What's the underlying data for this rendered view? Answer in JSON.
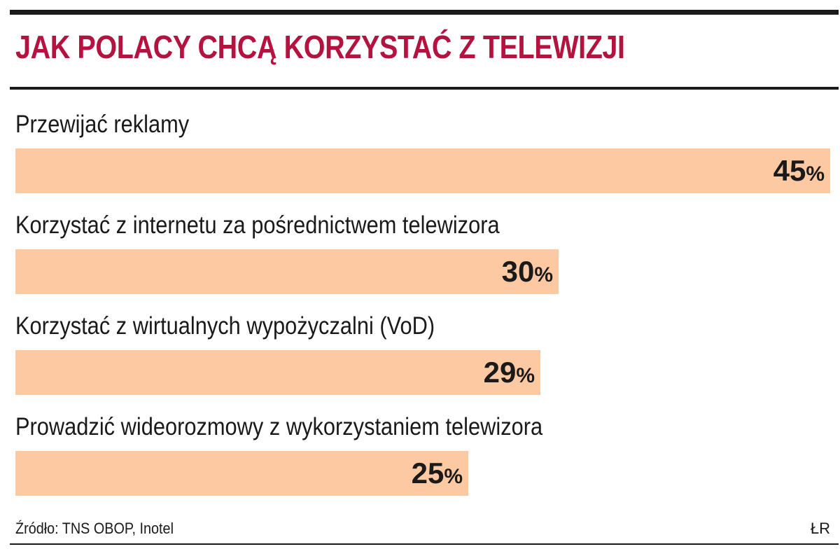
{
  "colors": {
    "title": "#b5133f",
    "bar": "#fdc9a3",
    "text": "#1a1a1a"
  },
  "chart_data": {
    "type": "bar",
    "orientation": "horizontal",
    "title": "JAK POLACY CHCĄ KORZYSTAĆ Z TELEWIZJI",
    "categories": [
      "Przewijać reklamy",
      "Korzystać z internetu za pośrednictwem telewizora",
      "Korzystać z wirtualnych wypożyczalni (VoD)",
      "Prowadzić wideorozmowy z wykorzystaniem telewizora"
    ],
    "values": [
      45,
      30,
      29,
      25
    ],
    "value_unit": "%",
    "xlim": [
      0,
      45
    ],
    "grid": false,
    "legend": "none"
  },
  "footer": {
    "source": "Źródło: TNS OBOP, Inotel",
    "credit": "ŁR"
  }
}
